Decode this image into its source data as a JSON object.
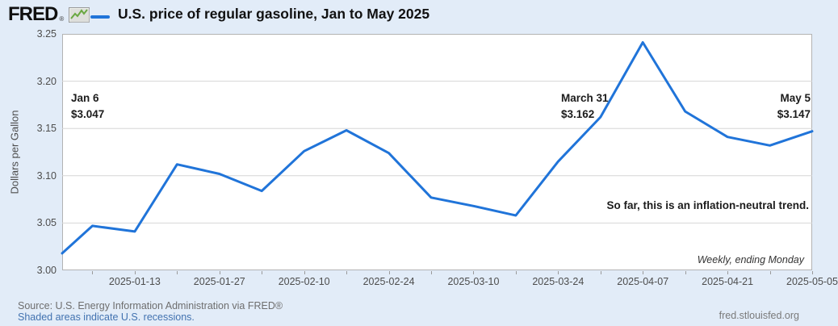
{
  "header": {
    "logo": "FRED",
    "logo_mark": "®",
    "title": "U.S. price of regular gasoline, Jan to May 2025"
  },
  "colors": {
    "background": "#e2ecf8",
    "plot_background": "#ffffff",
    "line": "#2074d9",
    "gridline": "#d6d6d6",
    "frame": "#b3b3b3",
    "tick_text": "#4d4d4d",
    "annotation_text": "#1c1c1c",
    "source_text": "#6e6e6e",
    "link_text": "#4272b0",
    "logo_icon_green": "#6aa842"
  },
  "chart_data": {
    "type": "line",
    "title": "U.S. price of regular gasoline, Jan to May 2025",
    "xlabel": "",
    "ylabel": "Dollars per Gallon",
    "ylim": [
      3.0,
      3.25
    ],
    "y_ticks": [
      "3.25",
      "3.20",
      "3.15",
      "3.10",
      "3.05",
      "3.00"
    ],
    "x_range_days": 124,
    "x_ticks": [
      {
        "label": "2025-01-13",
        "day": 12
      },
      {
        "label": "2025-01-27",
        "day": 26
      },
      {
        "label": "2025-02-10",
        "day": 40
      },
      {
        "label": "2025-02-24",
        "day": 54
      },
      {
        "label": "2025-03-10",
        "day": 68
      },
      {
        "label": "2025-03-24",
        "day": 82
      },
      {
        "label": "2025-04-07",
        "day": 96
      },
      {
        "label": "2025-04-21",
        "day": 110
      },
      {
        "label": "2025-05-05",
        "day": 124
      }
    ],
    "grid": "horizontal",
    "legend_position": "top-left-of-title",
    "frequency_note": "Weekly, ending Monday",
    "series": [
      {
        "name": "U.S. price of regular gasoline",
        "color": "#2074d9",
        "points": [
          {
            "date": "2025-01-01",
            "day": 0,
            "value": 3.018
          },
          {
            "date": "2025-01-06",
            "day": 5,
            "value": 3.047
          },
          {
            "date": "2025-01-13",
            "day": 12,
            "value": 3.041
          },
          {
            "date": "2025-01-20",
            "day": 19,
            "value": 3.112
          },
          {
            "date": "2025-01-27",
            "day": 26,
            "value": 3.102
          },
          {
            "date": "2025-02-03",
            "day": 33,
            "value": 3.084
          },
          {
            "date": "2025-02-10",
            "day": 40,
            "value": 3.126
          },
          {
            "date": "2025-02-17",
            "day": 47,
            "value": 3.148
          },
          {
            "date": "2025-02-24",
            "day": 54,
            "value": 3.124
          },
          {
            "date": "2025-03-03",
            "day": 61,
            "value": 3.077
          },
          {
            "date": "2025-03-10",
            "day": 68,
            "value": 3.068
          },
          {
            "date": "2025-03-17",
            "day": 75,
            "value": 3.058
          },
          {
            "date": "2025-03-24",
            "day": 82,
            "value": 3.115
          },
          {
            "date": "2025-03-31",
            "day": 89,
            "value": 3.162
          },
          {
            "date": "2025-04-07",
            "day": 96,
            "value": 3.241
          },
          {
            "date": "2025-04-14",
            "day": 103,
            "value": 3.168
          },
          {
            "date": "2025-04-21",
            "day": 110,
            "value": 3.141
          },
          {
            "date": "2025-04-28",
            "day": 117,
            "value": 3.132
          },
          {
            "date": "2025-05-05",
            "day": 124,
            "value": 3.147
          }
        ]
      }
    ]
  },
  "annotations": {
    "jan6": {
      "line1": "Jan 6",
      "line2": "$3.047"
    },
    "mar31": {
      "line1": "March 31",
      "line2": "$3.162"
    },
    "may5": {
      "line1": "May 5",
      "line2": "$3.147"
    },
    "trend": "So far, this is an inflation-neutral trend.",
    "frequency": "Weekly, ending Monday"
  },
  "footer": {
    "source": "Source: U.S. Energy Information Administration via FRED®",
    "recession_note": "Shaded areas indicate U.S. recessions.",
    "site": "fred.stlouisfed.org"
  }
}
